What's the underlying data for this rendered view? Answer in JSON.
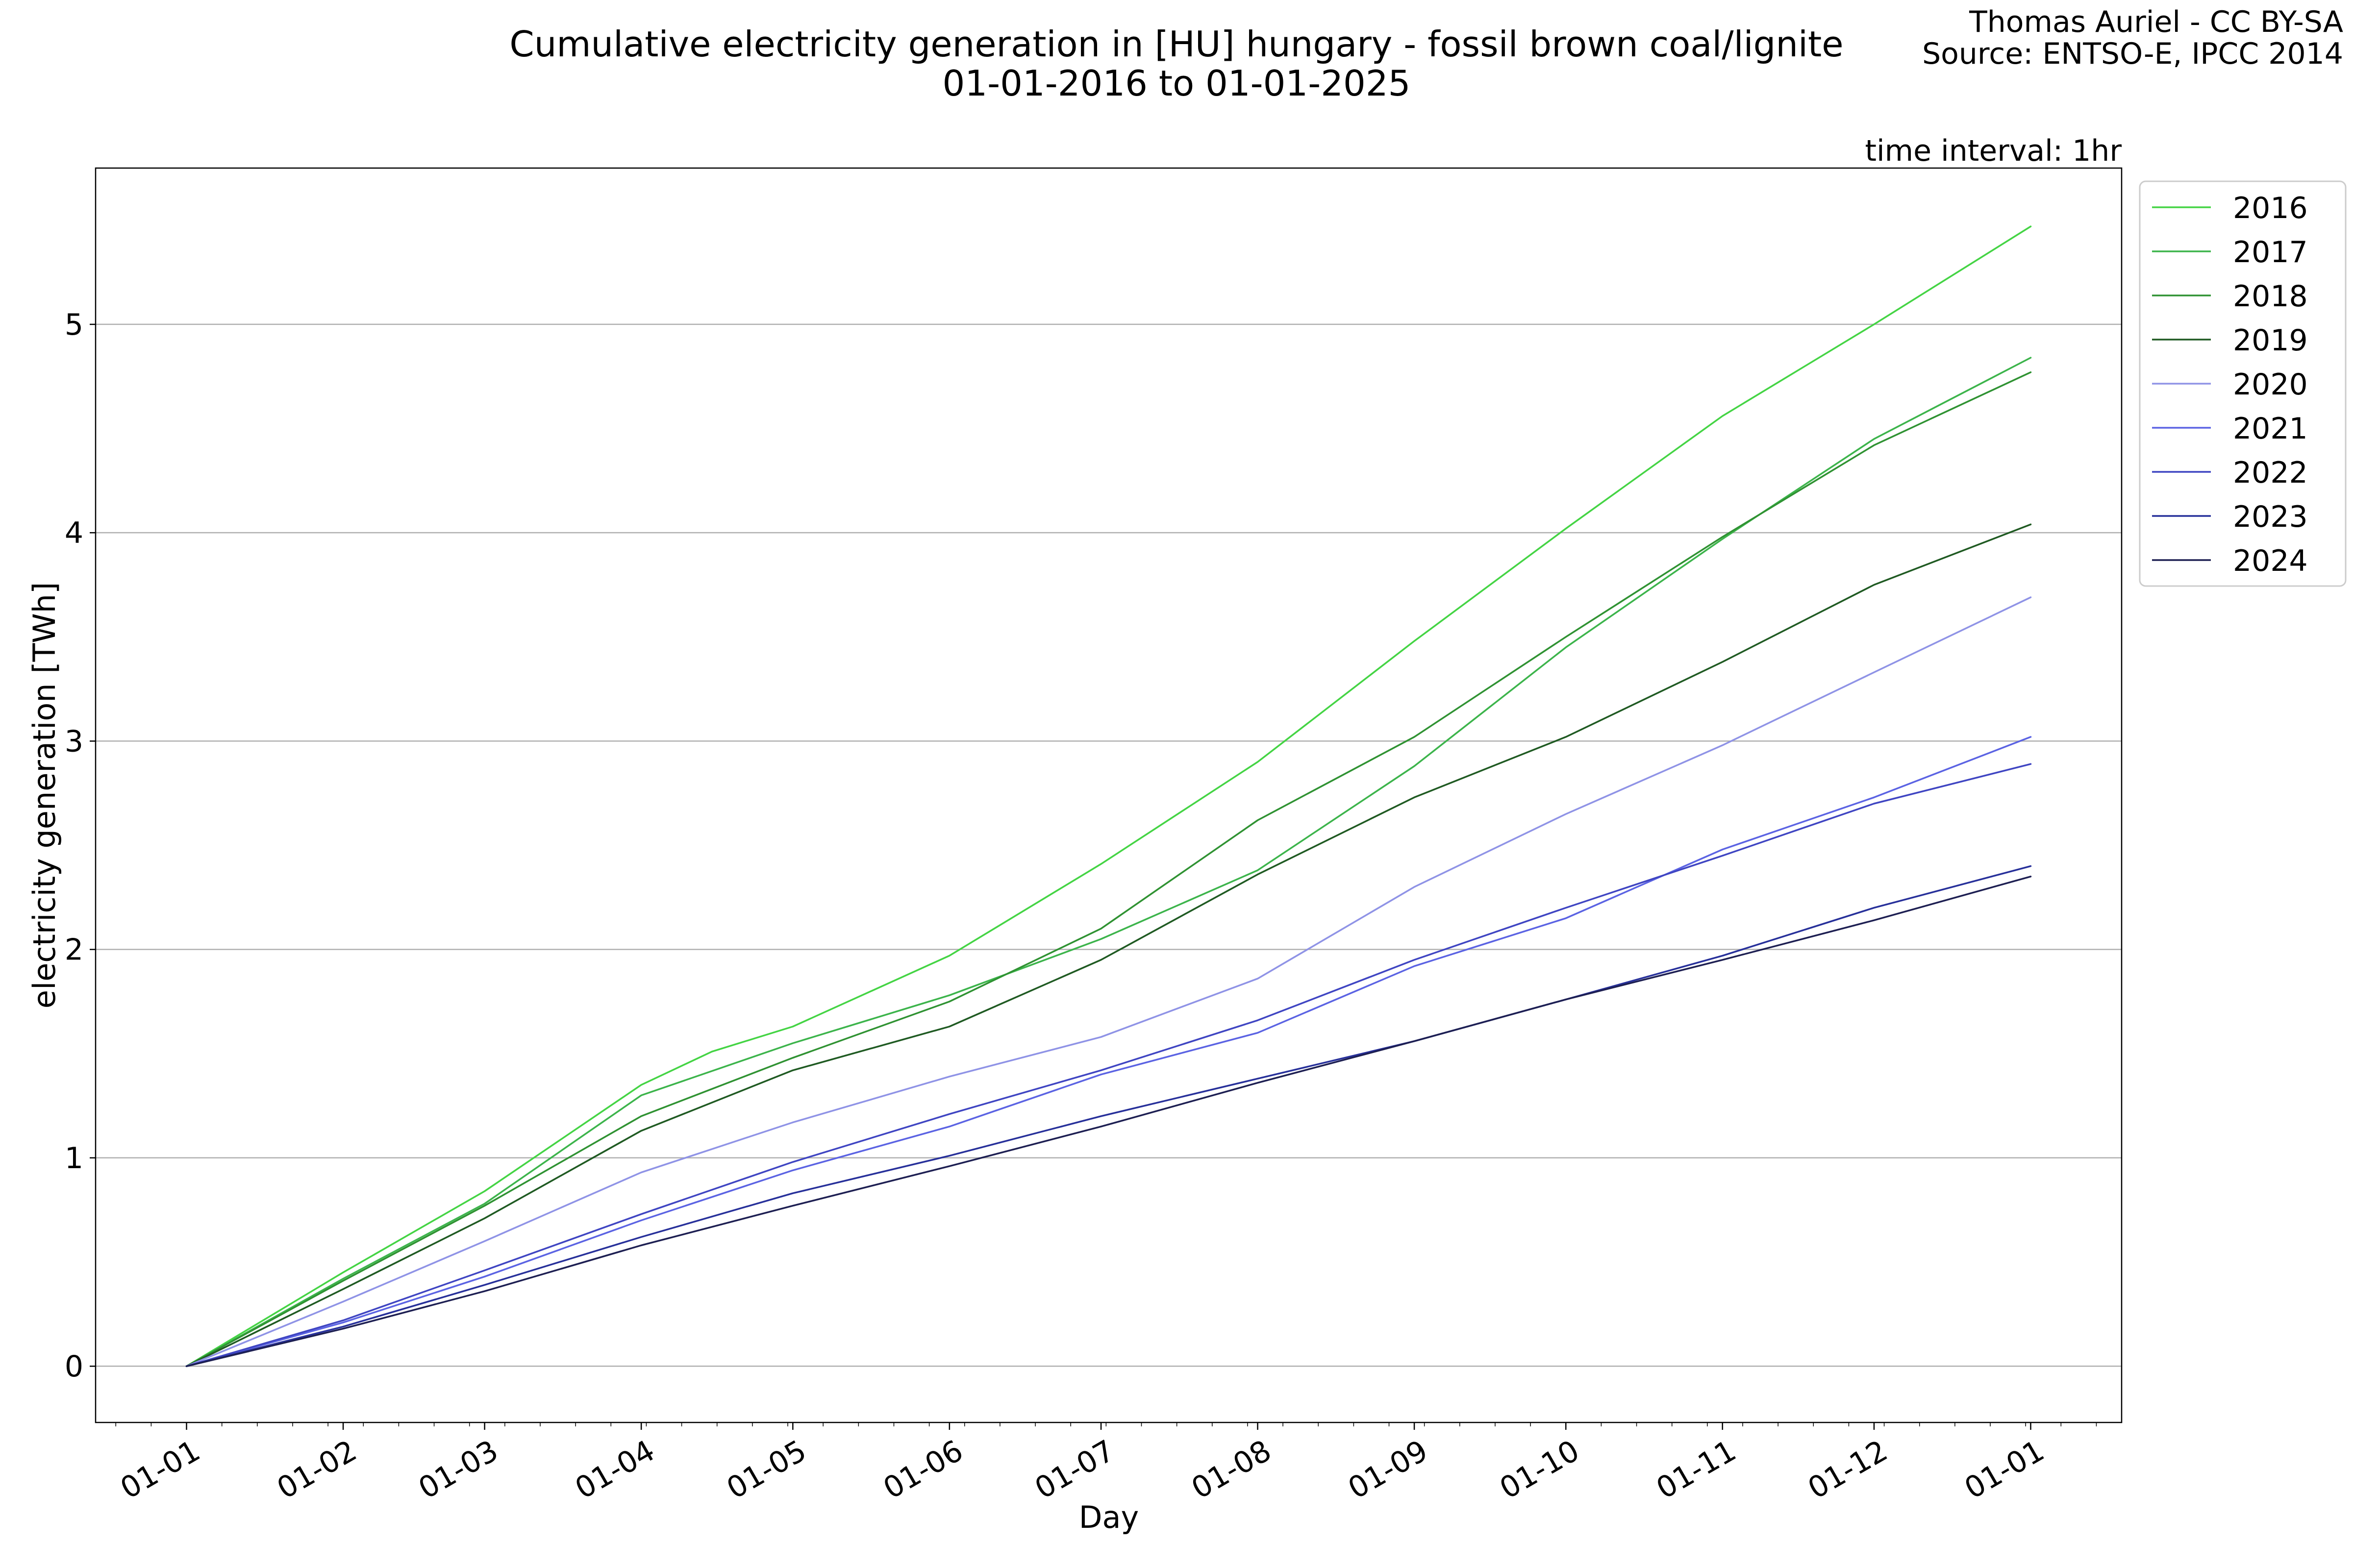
{
  "chart_data": {
    "type": "line",
    "title": "Cumulative electricity generation in [HU] hungary - fossil brown coal/lignite",
    "subtitle": "01-01-2016 to 01-01-2025",
    "credit": "Thomas Auriel - CC BY-SA",
    "source": "Source: ENTSO-E, IPCC 2014",
    "interval_label": "time interval: 1hr",
    "xlabel": "Day",
    "ylabel": "electricity generation [TWh]",
    "x_ticks": [
      "01-01",
      "01-02",
      "01-03",
      "01-04",
      "01-05",
      "01-06",
      "01-07",
      "01-08",
      "01-09",
      "01-10",
      "01-11",
      "01-12",
      "01-01"
    ],
    "x_tick_days": [
      0,
      31,
      59,
      90,
      120,
      151,
      181,
      212,
      243,
      273,
      304,
      334,
      365
    ],
    "xlim": [
      -18,
      383
    ],
    "y_ticks": [
      0,
      1,
      2,
      3,
      4,
      5
    ],
    "ylim": [
      -0.27,
      5.75
    ],
    "grid": "y",
    "legend_position": "right-outside",
    "series": [
      {
        "name": "2016",
        "color": "#44d444",
        "values": [
          [
            0,
            0
          ],
          [
            31,
            0.45
          ],
          [
            59,
            0.84
          ],
          [
            90,
            1.35
          ],
          [
            104,
            1.51
          ],
          [
            120,
            1.63
          ],
          [
            151,
            1.97
          ],
          [
            181,
            2.41
          ],
          [
            212,
            2.9
          ],
          [
            243,
            3.48
          ],
          [
            273,
            4.02
          ],
          [
            304,
            4.56
          ],
          [
            334,
            5.0
          ],
          [
            365,
            5.47
          ]
        ]
      },
      {
        "name": "2017",
        "color": "#3cb44b",
        "values": [
          [
            0,
            0
          ],
          [
            31,
            0.42
          ],
          [
            59,
            0.78
          ],
          [
            90,
            1.3
          ],
          [
            120,
            1.55
          ],
          [
            151,
            1.78
          ],
          [
            181,
            2.05
          ],
          [
            212,
            2.38
          ],
          [
            243,
            2.88
          ],
          [
            273,
            3.45
          ],
          [
            304,
            3.97
          ],
          [
            334,
            4.45
          ],
          [
            365,
            4.84
          ]
        ]
      },
      {
        "name": "2018",
        "color": "#2f9232",
        "values": [
          [
            0,
            0
          ],
          [
            31,
            0.41
          ],
          [
            59,
            0.77
          ],
          [
            90,
            1.2
          ],
          [
            120,
            1.48
          ],
          [
            151,
            1.75
          ],
          [
            181,
            2.1
          ],
          [
            212,
            2.62
          ],
          [
            243,
            3.02
          ],
          [
            273,
            3.5
          ],
          [
            304,
            3.98
          ],
          [
            334,
            4.42
          ],
          [
            365,
            4.77
          ]
        ]
      },
      {
        "name": "2019",
        "color": "#1f5a22",
        "values": [
          [
            0,
            0
          ],
          [
            31,
            0.37
          ],
          [
            59,
            0.71
          ],
          [
            90,
            1.13
          ],
          [
            120,
            1.42
          ],
          [
            151,
            1.63
          ],
          [
            181,
            1.95
          ],
          [
            212,
            2.36
          ],
          [
            243,
            2.73
          ],
          [
            273,
            3.02
          ],
          [
            304,
            3.38
          ],
          [
            334,
            3.75
          ],
          [
            365,
            4.04
          ]
        ]
      },
      {
        "name": "2020",
        "color": "#8f93e6",
        "values": [
          [
            0,
            0
          ],
          [
            31,
            0.31
          ],
          [
            59,
            0.6
          ],
          [
            90,
            0.93
          ],
          [
            120,
            1.17
          ],
          [
            151,
            1.39
          ],
          [
            181,
            1.58
          ],
          [
            212,
            1.86
          ],
          [
            243,
            2.3
          ],
          [
            273,
            2.65
          ],
          [
            304,
            2.98
          ],
          [
            334,
            3.33
          ],
          [
            365,
            3.69
          ]
        ]
      },
      {
        "name": "2021",
        "color": "#5b63e3",
        "values": [
          [
            0,
            0
          ],
          [
            31,
            0.21
          ],
          [
            59,
            0.43
          ],
          [
            90,
            0.7
          ],
          [
            120,
            0.94
          ],
          [
            151,
            1.15
          ],
          [
            181,
            1.4
          ],
          [
            212,
            1.6
          ],
          [
            243,
            1.92
          ],
          [
            273,
            2.15
          ],
          [
            304,
            2.48
          ],
          [
            334,
            2.73
          ],
          [
            365,
            3.02
          ]
        ]
      },
      {
        "name": "2022",
        "color": "#3f45c2",
        "values": [
          [
            0,
            0
          ],
          [
            31,
            0.22
          ],
          [
            59,
            0.46
          ],
          [
            90,
            0.73
          ],
          [
            120,
            0.98
          ],
          [
            151,
            1.21
          ],
          [
            181,
            1.42
          ],
          [
            212,
            1.66
          ],
          [
            243,
            1.95
          ],
          [
            273,
            2.2
          ],
          [
            304,
            2.45
          ],
          [
            334,
            2.7
          ],
          [
            365,
            2.89
          ]
        ]
      },
      {
        "name": "2023",
        "color": "#27309a",
        "values": [
          [
            0,
            0
          ],
          [
            31,
            0.19
          ],
          [
            59,
            0.39
          ],
          [
            90,
            0.62
          ],
          [
            120,
            0.83
          ],
          [
            151,
            1.01
          ],
          [
            181,
            1.2
          ],
          [
            212,
            1.38
          ],
          [
            243,
            1.56
          ],
          [
            273,
            1.76
          ],
          [
            304,
            1.97
          ],
          [
            334,
            2.2
          ],
          [
            365,
            2.4
          ]
        ]
      },
      {
        "name": "2024",
        "color": "#1d1f52",
        "values": [
          [
            0,
            0
          ],
          [
            31,
            0.18
          ],
          [
            59,
            0.36
          ],
          [
            90,
            0.58
          ],
          [
            120,
            0.77
          ],
          [
            151,
            0.96
          ],
          [
            181,
            1.15
          ],
          [
            212,
            1.36
          ],
          [
            243,
            1.56
          ],
          [
            273,
            1.76
          ],
          [
            304,
            1.95
          ],
          [
            334,
            2.14
          ],
          [
            365,
            2.35
          ]
        ]
      }
    ]
  }
}
